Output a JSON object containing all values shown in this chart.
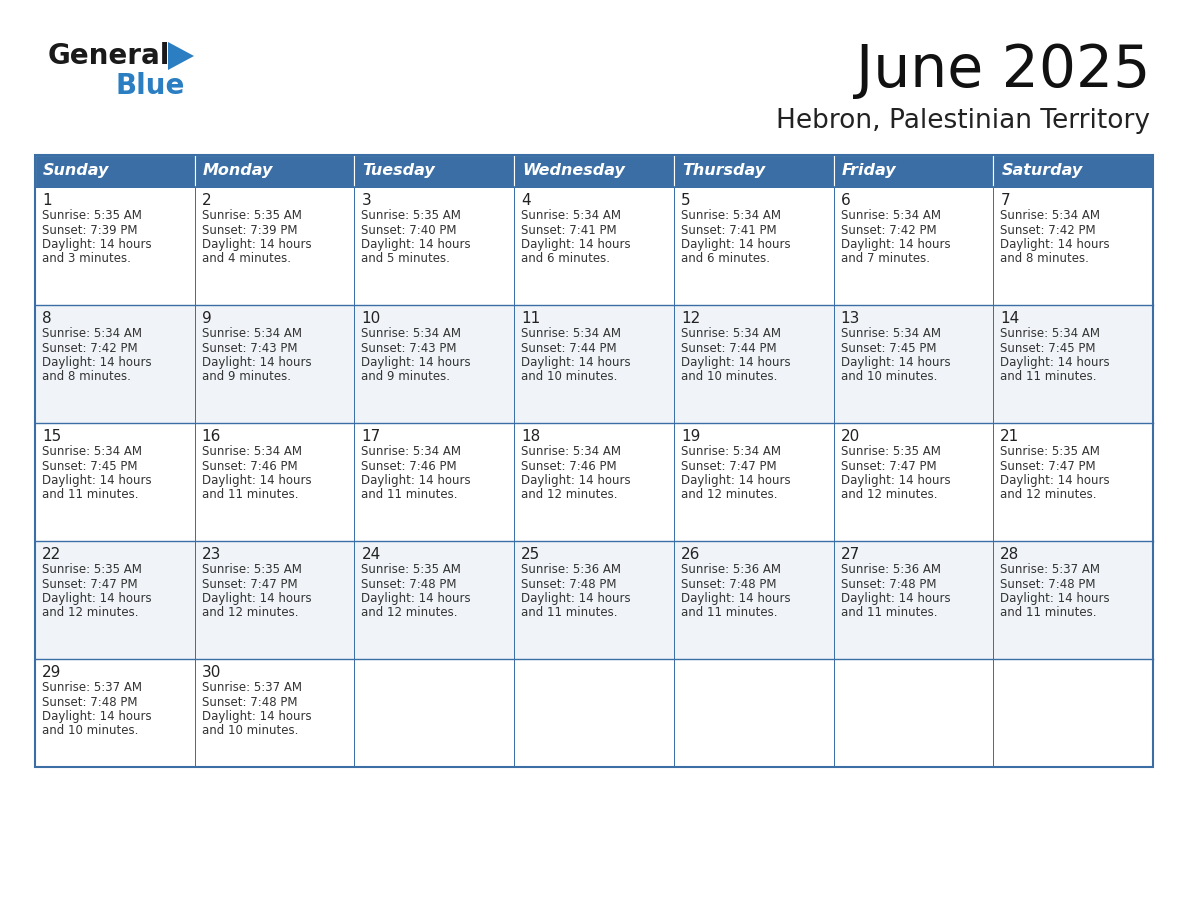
{
  "title": "June 2025",
  "subtitle": "Hebron, Palestinian Territory",
  "days_of_week": [
    "Sunday",
    "Monday",
    "Tuesday",
    "Wednesday",
    "Thursday",
    "Friday",
    "Saturday"
  ],
  "header_bg_color": "#3A6EA5",
  "header_text_color": "#FFFFFF",
  "cell_bg_color_odd": "#F0F4F8",
  "cell_bg_color_even": "#FFFFFF",
  "border_color": "#3A6EA5",
  "day_number_color": "#222222",
  "cell_text_color": "#333333",
  "title_color": "#111111",
  "subtitle_color": "#222222",
  "logo_black": "#1a1a1a",
  "logo_blue": "#2B7EC1",
  "triangle_color": "#2B7EC1",
  "calendar_data": [
    [
      {
        "day": 1,
        "sunrise": "5:35 AM",
        "sunset": "7:39 PM",
        "daylight": "14 hours and 3 minutes."
      },
      {
        "day": 2,
        "sunrise": "5:35 AM",
        "sunset": "7:39 PM",
        "daylight": "14 hours and 4 minutes."
      },
      {
        "day": 3,
        "sunrise": "5:35 AM",
        "sunset": "7:40 PM",
        "daylight": "14 hours and 5 minutes."
      },
      {
        "day": 4,
        "sunrise": "5:34 AM",
        "sunset": "7:41 PM",
        "daylight": "14 hours and 6 minutes."
      },
      {
        "day": 5,
        "sunrise": "5:34 AM",
        "sunset": "7:41 PM",
        "daylight": "14 hours and 6 minutes."
      },
      {
        "day": 6,
        "sunrise": "5:34 AM",
        "sunset": "7:42 PM",
        "daylight": "14 hours and 7 minutes."
      },
      {
        "day": 7,
        "sunrise": "5:34 AM",
        "sunset": "7:42 PM",
        "daylight": "14 hours and 8 minutes."
      }
    ],
    [
      {
        "day": 8,
        "sunrise": "5:34 AM",
        "sunset": "7:42 PM",
        "daylight": "14 hours and 8 minutes."
      },
      {
        "day": 9,
        "sunrise": "5:34 AM",
        "sunset": "7:43 PM",
        "daylight": "14 hours and 9 minutes."
      },
      {
        "day": 10,
        "sunrise": "5:34 AM",
        "sunset": "7:43 PM",
        "daylight": "14 hours and 9 minutes."
      },
      {
        "day": 11,
        "sunrise": "5:34 AM",
        "sunset": "7:44 PM",
        "daylight": "14 hours and 10 minutes."
      },
      {
        "day": 12,
        "sunrise": "5:34 AM",
        "sunset": "7:44 PM",
        "daylight": "14 hours and 10 minutes."
      },
      {
        "day": 13,
        "sunrise": "5:34 AM",
        "sunset": "7:45 PM",
        "daylight": "14 hours and 10 minutes."
      },
      {
        "day": 14,
        "sunrise": "5:34 AM",
        "sunset": "7:45 PM",
        "daylight": "14 hours and 11 minutes."
      }
    ],
    [
      {
        "day": 15,
        "sunrise": "5:34 AM",
        "sunset": "7:45 PM",
        "daylight": "14 hours and 11 minutes."
      },
      {
        "day": 16,
        "sunrise": "5:34 AM",
        "sunset": "7:46 PM",
        "daylight": "14 hours and 11 minutes."
      },
      {
        "day": 17,
        "sunrise": "5:34 AM",
        "sunset": "7:46 PM",
        "daylight": "14 hours and 11 minutes."
      },
      {
        "day": 18,
        "sunrise": "5:34 AM",
        "sunset": "7:46 PM",
        "daylight": "14 hours and 12 minutes."
      },
      {
        "day": 19,
        "sunrise": "5:34 AM",
        "sunset": "7:47 PM",
        "daylight": "14 hours and 12 minutes."
      },
      {
        "day": 20,
        "sunrise": "5:35 AM",
        "sunset": "7:47 PM",
        "daylight": "14 hours and 12 minutes."
      },
      {
        "day": 21,
        "sunrise": "5:35 AM",
        "sunset": "7:47 PM",
        "daylight": "14 hours and 12 minutes."
      }
    ],
    [
      {
        "day": 22,
        "sunrise": "5:35 AM",
        "sunset": "7:47 PM",
        "daylight": "14 hours and 12 minutes."
      },
      {
        "day": 23,
        "sunrise": "5:35 AM",
        "sunset": "7:47 PM",
        "daylight": "14 hours and 12 minutes."
      },
      {
        "day": 24,
        "sunrise": "5:35 AM",
        "sunset": "7:48 PM",
        "daylight": "14 hours and 12 minutes."
      },
      {
        "day": 25,
        "sunrise": "5:36 AM",
        "sunset": "7:48 PM",
        "daylight": "14 hours and 11 minutes."
      },
      {
        "day": 26,
        "sunrise": "5:36 AM",
        "sunset": "7:48 PM",
        "daylight": "14 hours and 11 minutes."
      },
      {
        "day": 27,
        "sunrise": "5:36 AM",
        "sunset": "7:48 PM",
        "daylight": "14 hours and 11 minutes."
      },
      {
        "day": 28,
        "sunrise": "5:37 AM",
        "sunset": "7:48 PM",
        "daylight": "14 hours and 11 minutes."
      }
    ],
    [
      {
        "day": 29,
        "sunrise": "5:37 AM",
        "sunset": "7:48 PM",
        "daylight": "14 hours and 10 minutes."
      },
      {
        "day": 30,
        "sunrise": "5:37 AM",
        "sunset": "7:48 PM",
        "daylight": "14 hours and 10 minutes."
      },
      null,
      null,
      null,
      null,
      null
    ]
  ]
}
